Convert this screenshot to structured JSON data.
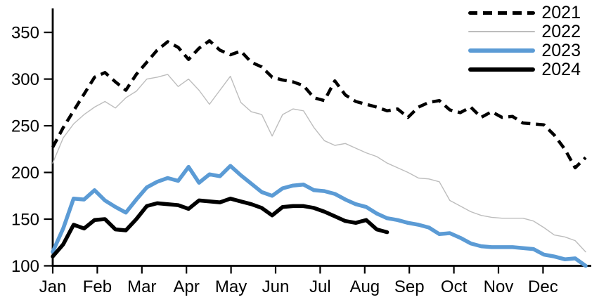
{
  "chart_data": {
    "type": "line",
    "title": "",
    "xlabel": "",
    "ylabel": "",
    "x_unit": "weekly (52 points per full year)",
    "ylim": [
      100,
      350
    ],
    "grid": false,
    "legend_position": "top-right",
    "y_ticks": [
      100,
      150,
      200,
      250,
      300,
      350
    ],
    "x_tick_labels": [
      "Jan",
      "Feb",
      "Mar",
      "Apr",
      "May",
      "Jun",
      "Jul",
      "Aug",
      "Sep",
      "Oct",
      "Nov",
      "Dec"
    ],
    "series": [
      {
        "name": "2021",
        "color": "#000000",
        "style": "dashed",
        "width": 4.5,
        "values": [
          227,
          248,
          266,
          284,
          302,
          307,
          297,
          288,
          305,
          318,
          331,
          340,
          334,
          321,
          333,
          341,
          331,
          326,
          330,
          318,
          313,
          302,
          299,
          297,
          293,
          280,
          277,
          298,
          283,
          276,
          273,
          270,
          266,
          268,
          259,
          270,
          275,
          277,
          267,
          264,
          270,
          259,
          265,
          259,
          260,
          253,
          252,
          251,
          240,
          225,
          205,
          216
        ]
      },
      {
        "name": "2022",
        "color": "#BDBDBD",
        "style": "solid",
        "width": 1.4,
        "values": [
          210,
          237,
          252,
          262,
          270,
          276,
          269,
          280,
          287,
          300,
          302,
          305,
          292,
          300,
          288,
          273,
          288,
          303,
          275,
          265,
          262,
          239,
          262,
          268,
          266,
          248,
          234,
          229,
          231,
          226,
          221,
          217,
          210,
          205,
          200,
          194,
          193,
          190,
          170,
          164,
          158,
          154,
          152,
          151,
          151,
          151,
          148,
          141,
          133,
          131,
          127,
          115
        ]
      },
      {
        "name": "2023",
        "color": "#5B9BD5",
        "style": "solid",
        "width": 5.5,
        "values": [
          115,
          140,
          172,
          171,
          181,
          170,
          163,
          157,
          171,
          184,
          190,
          194,
          191,
          206,
          189,
          198,
          196,
          207,
          197,
          188,
          179,
          175,
          183,
          186,
          187,
          181,
          180,
          177,
          171,
          166,
          163,
          156,
          151,
          149,
          146,
          144,
          141,
          134,
          135,
          130,
          124,
          121,
          120,
          120,
          120,
          119,
          118,
          112,
          110,
          107,
          108,
          100
        ]
      },
      {
        "name": "2024",
        "color": "#000000",
        "style": "solid",
        "width": 5.5,
        "values": [
          110,
          123,
          144,
          140,
          149,
          150,
          139,
          138,
          150,
          164,
          167,
          166,
          165,
          161,
          170,
          169,
          168,
          172,
          169,
          166,
          162,
          154,
          163,
          164,
          164,
          162,
          158,
          153,
          148,
          146,
          149,
          139,
          136
        ]
      }
    ]
  }
}
